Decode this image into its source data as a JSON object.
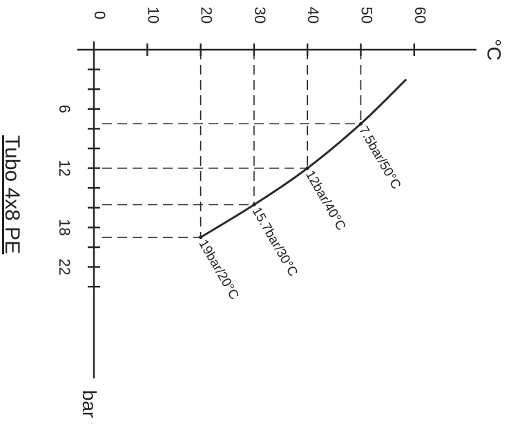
{
  "chart_data": {
    "type": "line",
    "title": "Tubo 4x8 PE",
    "xlabel": "bar",
    "ylabel": "°C",
    "x_ticks": [
      "6",
      "12",
      "18",
      "22"
    ],
    "y_ticks": [
      "0",
      "10",
      "20",
      "30",
      "40",
      "50",
      "60"
    ],
    "xlim": [
      0,
      26
    ],
    "ylim": [
      0,
      65
    ],
    "grid": false,
    "series": [
      {
        "points": [
          {
            "x": 19,
            "y": 20
          },
          {
            "x": 15.7,
            "y": 30
          },
          {
            "x": 12,
            "y": 40
          },
          {
            "x": 7.5,
            "y": 50
          },
          {
            "x": 3,
            "y": 58.5
          }
        ]
      }
    ],
    "annotations": [
      {
        "text": "7.5bar/50°C",
        "x": 7.5,
        "y": 50
      },
      {
        "text": "12bar/40°C",
        "x": 12,
        "y": 40
      },
      {
        "text": "15.7bar/30°C",
        "x": 15.7,
        "y": 30
      },
      {
        "text": "19bar/20°C",
        "x": 19,
        "y": 20
      }
    ],
    "colors": {
      "line": "#2a2a2a",
      "ink": "#222222"
    }
  }
}
